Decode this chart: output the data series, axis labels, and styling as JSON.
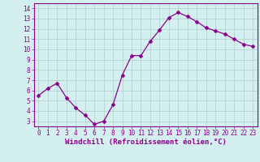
{
  "x": [
    0,
    1,
    2,
    3,
    4,
    5,
    6,
    7,
    8,
    9,
    10,
    11,
    12,
    13,
    14,
    15,
    16,
    17,
    18,
    19,
    20,
    21,
    22,
    23
  ],
  "y": [
    5.5,
    6.2,
    6.7,
    5.3,
    4.3,
    3.6,
    2.7,
    3.0,
    4.6,
    7.5,
    9.4,
    9.4,
    10.8,
    11.9,
    13.1,
    13.6,
    13.2,
    12.7,
    12.1,
    11.8,
    11.5,
    11.0,
    10.5,
    10.3
  ],
  "line_color": "#8B008B",
  "marker": "D",
  "marker_size": 2.5,
  "bg_color": "#d4efef",
  "grid_color": "#b0cccc",
  "xlim": [
    -0.5,
    23.5
  ],
  "ylim": [
    2.5,
    14.5
  ],
  "yticks": [
    3,
    4,
    5,
    6,
    7,
    8,
    9,
    10,
    11,
    12,
    13,
    14
  ],
  "xticks": [
    0,
    1,
    2,
    3,
    4,
    5,
    6,
    7,
    8,
    9,
    10,
    11,
    12,
    13,
    14,
    15,
    16,
    17,
    18,
    19,
    20,
    21,
    22,
    23
  ],
  "tick_label_size": 5.5,
  "xlabel": "Windchill (Refroidissement éolien,°C)",
  "xlabel_size": 6.5,
  "spine_color": "#8B008B",
  "axis_label_color": "#8B008B"
}
